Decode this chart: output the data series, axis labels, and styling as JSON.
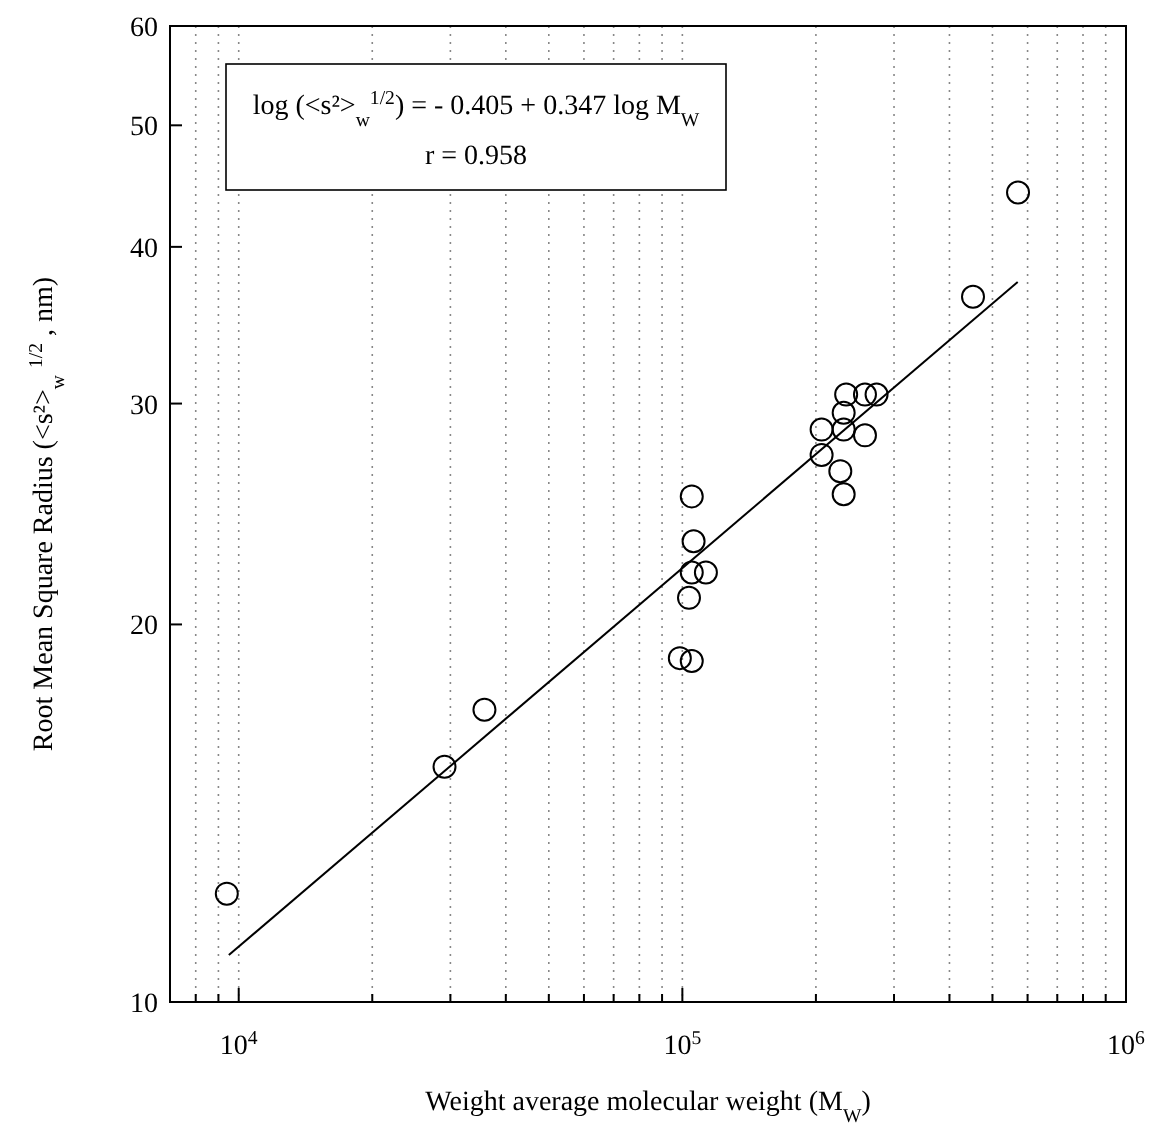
{
  "chart_data": {
    "type": "scatter",
    "xlabel": "Weight average molecular weight (M$_{W}$)",
    "ylabel": "Root Mean Square Radius (<s²>$_{w}$ $^{1/2}$ , nm)",
    "log": "xy",
    "xlim": [
      7000,
      1000000
    ],
    "ylim": [
      10,
      60
    ],
    "xticks": [
      {
        "value": 8000,
        "label": null
      },
      {
        "value": 9000,
        "label": null
      },
      {
        "value": 10000,
        "label": "10$^{4}$"
      },
      {
        "value": 20000,
        "label": null
      },
      {
        "value": 30000,
        "label": null
      },
      {
        "value": 40000,
        "label": null
      },
      {
        "value": 50000,
        "label": null
      },
      {
        "value": 60000,
        "label": null
      },
      {
        "value": 70000,
        "label": null
      },
      {
        "value": 80000,
        "label": null
      },
      {
        "value": 90000,
        "label": null
      },
      {
        "value": 100000,
        "label": "10$^{5}$"
      },
      {
        "value": 200000,
        "label": null
      },
      {
        "value": 300000,
        "label": null
      },
      {
        "value": 400000,
        "label": null
      },
      {
        "value": 500000,
        "label": null
      },
      {
        "value": 600000,
        "label": null
      },
      {
        "value": 700000,
        "label": null
      },
      {
        "value": 800000,
        "label": null
      },
      {
        "value": 900000,
        "label": null
      },
      {
        "value": 1000000,
        "label": "10$^{6}$"
      }
    ],
    "yticks": [
      10,
      20,
      30,
      40,
      50,
      60
    ],
    "grid": "x",
    "marker": "circle",
    "annotations": [
      "log (<s²>$_{w}$$^{1/2}$) = - 0.405 + 0.347 log M$_{W}$",
      "r = 0.958"
    ],
    "series": [
      {
        "type": "scatter",
        "color": "#000000",
        "x": [
          9400,
          29100,
          35800,
          105000,
          106000,
          105000,
          113000,
          103500,
          98700,
          105000,
          206000,
          206000,
          234000,
          258000,
          274000,
          231000,
          231000,
          258000,
          227000,
          231000,
          452000,
          571000
        ],
        "values": [
          12.2,
          15.4,
          17.1,
          25.3,
          23.3,
          22.0,
          22.0,
          21.0,
          18.8,
          18.7,
          28.6,
          27.3,
          30.5,
          30.5,
          30.5,
          29.5,
          28.6,
          28.3,
          26.5,
          25.4,
          36.5,
          44.2
        ]
      },
      {
        "type": "line",
        "color": "#000000",
        "x": [
          9500,
          570000
        ],
        "values": [
          10.9,
          37.5
        ],
        "marker": "none",
        "line_style": "solid"
      }
    ]
  }
}
